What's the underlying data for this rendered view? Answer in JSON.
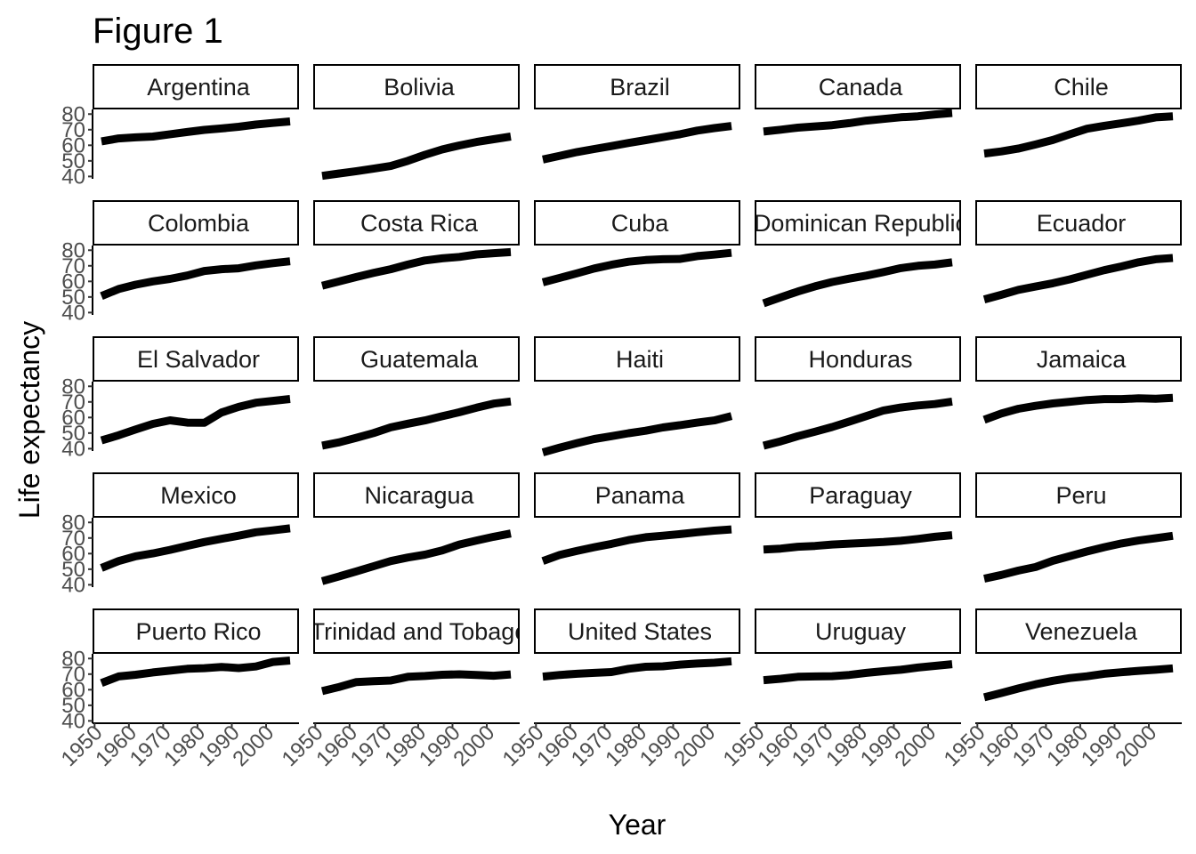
{
  "chart_data": {
    "type": "line",
    "title": "Figure 1",
    "xlabel": "Year",
    "ylabel": "Life expectancy",
    "facet_layout": {
      "rows": 5,
      "cols": 5
    },
    "xlim": [
      1952,
      2007
    ],
    "ylim": [
      40,
      80
    ],
    "x_ticks": [
      1950,
      1960,
      1970,
      1980,
      1990,
      2000
    ],
    "y_ticks": [
      40,
      50,
      60,
      70,
      80
    ],
    "x": [
      1952,
      1957,
      1962,
      1967,
      1972,
      1977,
      1982,
      1987,
      1992,
      1997,
      2002,
      2007
    ],
    "grid": false,
    "line_color": "#000000",
    "panels": [
      {
        "label": "Argentina",
        "values": [
          62.5,
          64.4,
          65.1,
          65.6,
          67.1,
          68.5,
          69.9,
          70.8,
          71.9,
          73.3,
          74.3,
          75.3
        ]
      },
      {
        "label": "Bolivia",
        "values": [
          40.4,
          41.9,
          43.4,
          45.0,
          46.7,
          50.0,
          53.9,
          57.3,
          59.9,
          62.1,
          63.9,
          65.6
        ]
      },
      {
        "label": "Brazil",
        "values": [
          50.9,
          53.3,
          55.7,
          57.6,
          59.5,
          61.5,
          63.3,
          65.2,
          67.1,
          69.4,
          71.0,
          72.4
        ]
      },
      {
        "label": "Canada",
        "values": [
          68.8,
          70.0,
          71.3,
          72.1,
          72.9,
          74.2,
          75.8,
          76.9,
          78.0,
          78.6,
          79.8,
          80.7
        ]
      },
      {
        "label": "Chile",
        "values": [
          54.7,
          56.1,
          57.9,
          60.5,
          63.4,
          67.1,
          70.6,
          72.5,
          74.1,
          75.8,
          77.9,
          78.6
        ]
      },
      {
        "label": "Colombia",
        "values": [
          50.6,
          55.1,
          57.9,
          60.0,
          61.6,
          63.8,
          66.7,
          67.8,
          68.4,
          70.3,
          71.7,
          72.9
        ]
      },
      {
        "label": "Costa Rica",
        "values": [
          57.2,
          60.0,
          62.8,
          65.4,
          67.8,
          70.8,
          73.4,
          74.8,
          75.7,
          77.3,
          78.1,
          78.8
        ]
      },
      {
        "label": "Cuba",
        "values": [
          59.4,
          62.3,
          65.2,
          68.3,
          70.7,
          72.6,
          73.7,
          74.2,
          74.4,
          76.2,
          77.2,
          78.3
        ]
      },
      {
        "label": "Dominican Republic",
        "values": [
          45.9,
          49.8,
          53.5,
          56.8,
          59.6,
          61.8,
          63.7,
          66.0,
          68.5,
          70.0,
          70.8,
          72.2
        ]
      },
      {
        "label": "Ecuador",
        "values": [
          48.4,
          51.4,
          54.6,
          56.7,
          58.8,
          61.3,
          64.3,
          67.2,
          69.6,
          72.3,
          74.2,
          75.0
        ]
      },
      {
        "label": "El Salvador",
        "values": [
          45.3,
          48.6,
          52.3,
          55.9,
          58.2,
          56.7,
          56.6,
          63.2,
          66.8,
          69.5,
          70.7,
          71.9
        ]
      },
      {
        "label": "Guatemala",
        "values": [
          42.0,
          44.1,
          47.0,
          50.0,
          53.7,
          56.0,
          58.1,
          60.8,
          63.4,
          66.3,
          68.9,
          70.3
        ]
      },
      {
        "label": "Haiti",
        "values": [
          37.6,
          40.7,
          43.6,
          46.2,
          48.0,
          49.9,
          51.5,
          53.6,
          55.1,
          56.7,
          58.1,
          60.9
        ]
      },
      {
        "label": "Honduras",
        "values": [
          41.9,
          44.7,
          48.0,
          50.9,
          53.9,
          57.4,
          60.9,
          64.5,
          66.4,
          67.7,
          68.6,
          70.2
        ]
      },
      {
        "label": "Jamaica",
        "values": [
          58.5,
          62.6,
          65.6,
          67.5,
          69.0,
          70.1,
          71.2,
          71.8,
          71.8,
          72.3,
          72.0,
          72.6
        ]
      },
      {
        "label": "Mexico",
        "values": [
          50.8,
          55.2,
          58.3,
          60.1,
          62.4,
          65.0,
          67.4,
          69.5,
          71.5,
          73.7,
          74.9,
          76.2
        ]
      },
      {
        "label": "Nicaragua",
        "values": [
          42.3,
          45.4,
          48.6,
          51.9,
          55.2,
          57.5,
          59.3,
          62.0,
          65.8,
          68.4,
          70.8,
          72.9
        ]
      },
      {
        "label": "Panama",
        "values": [
          55.2,
          59.2,
          61.8,
          64.1,
          66.2,
          68.7,
          70.5,
          71.5,
          72.5,
          73.7,
          74.7,
          75.5
        ]
      },
      {
        "label": "Paraguay",
        "values": [
          62.6,
          63.2,
          64.4,
          64.9,
          65.8,
          66.4,
          66.9,
          67.4,
          68.2,
          69.4,
          70.8,
          71.8
        ]
      },
      {
        "label": "Peru",
        "values": [
          43.9,
          46.3,
          49.1,
          51.4,
          55.4,
          58.4,
          61.4,
          64.1,
          66.5,
          68.4,
          69.9,
          71.4
        ]
      },
      {
        "label": "Puerto Rico",
        "values": [
          64.3,
          68.5,
          69.6,
          71.1,
          72.2,
          73.4,
          73.8,
          74.6,
          73.9,
          74.9,
          77.8,
          78.7
        ]
      },
      {
        "label": "Trinidad and Tobago",
        "values": [
          59.1,
          61.8,
          64.9,
          65.4,
          65.9,
          68.3,
          68.8,
          69.6,
          69.9,
          69.5,
          68.98,
          69.8
        ]
      },
      {
        "label": "United States",
        "values": [
          68.4,
          69.5,
          70.2,
          70.8,
          71.3,
          73.4,
          74.7,
          75.0,
          76.1,
          76.8,
          77.3,
          78.2
        ]
      },
      {
        "label": "Uruguay",
        "values": [
          66.1,
          67.0,
          68.3,
          68.5,
          68.7,
          69.5,
          70.8,
          71.9,
          72.8,
          74.2,
          75.3,
          76.4
        ]
      },
      {
        "label": "Venezuela",
        "values": [
          55.1,
          57.9,
          60.8,
          63.5,
          65.7,
          67.5,
          68.6,
          70.2,
          71.2,
          72.1,
          72.8,
          73.7
        ]
      }
    ]
  }
}
